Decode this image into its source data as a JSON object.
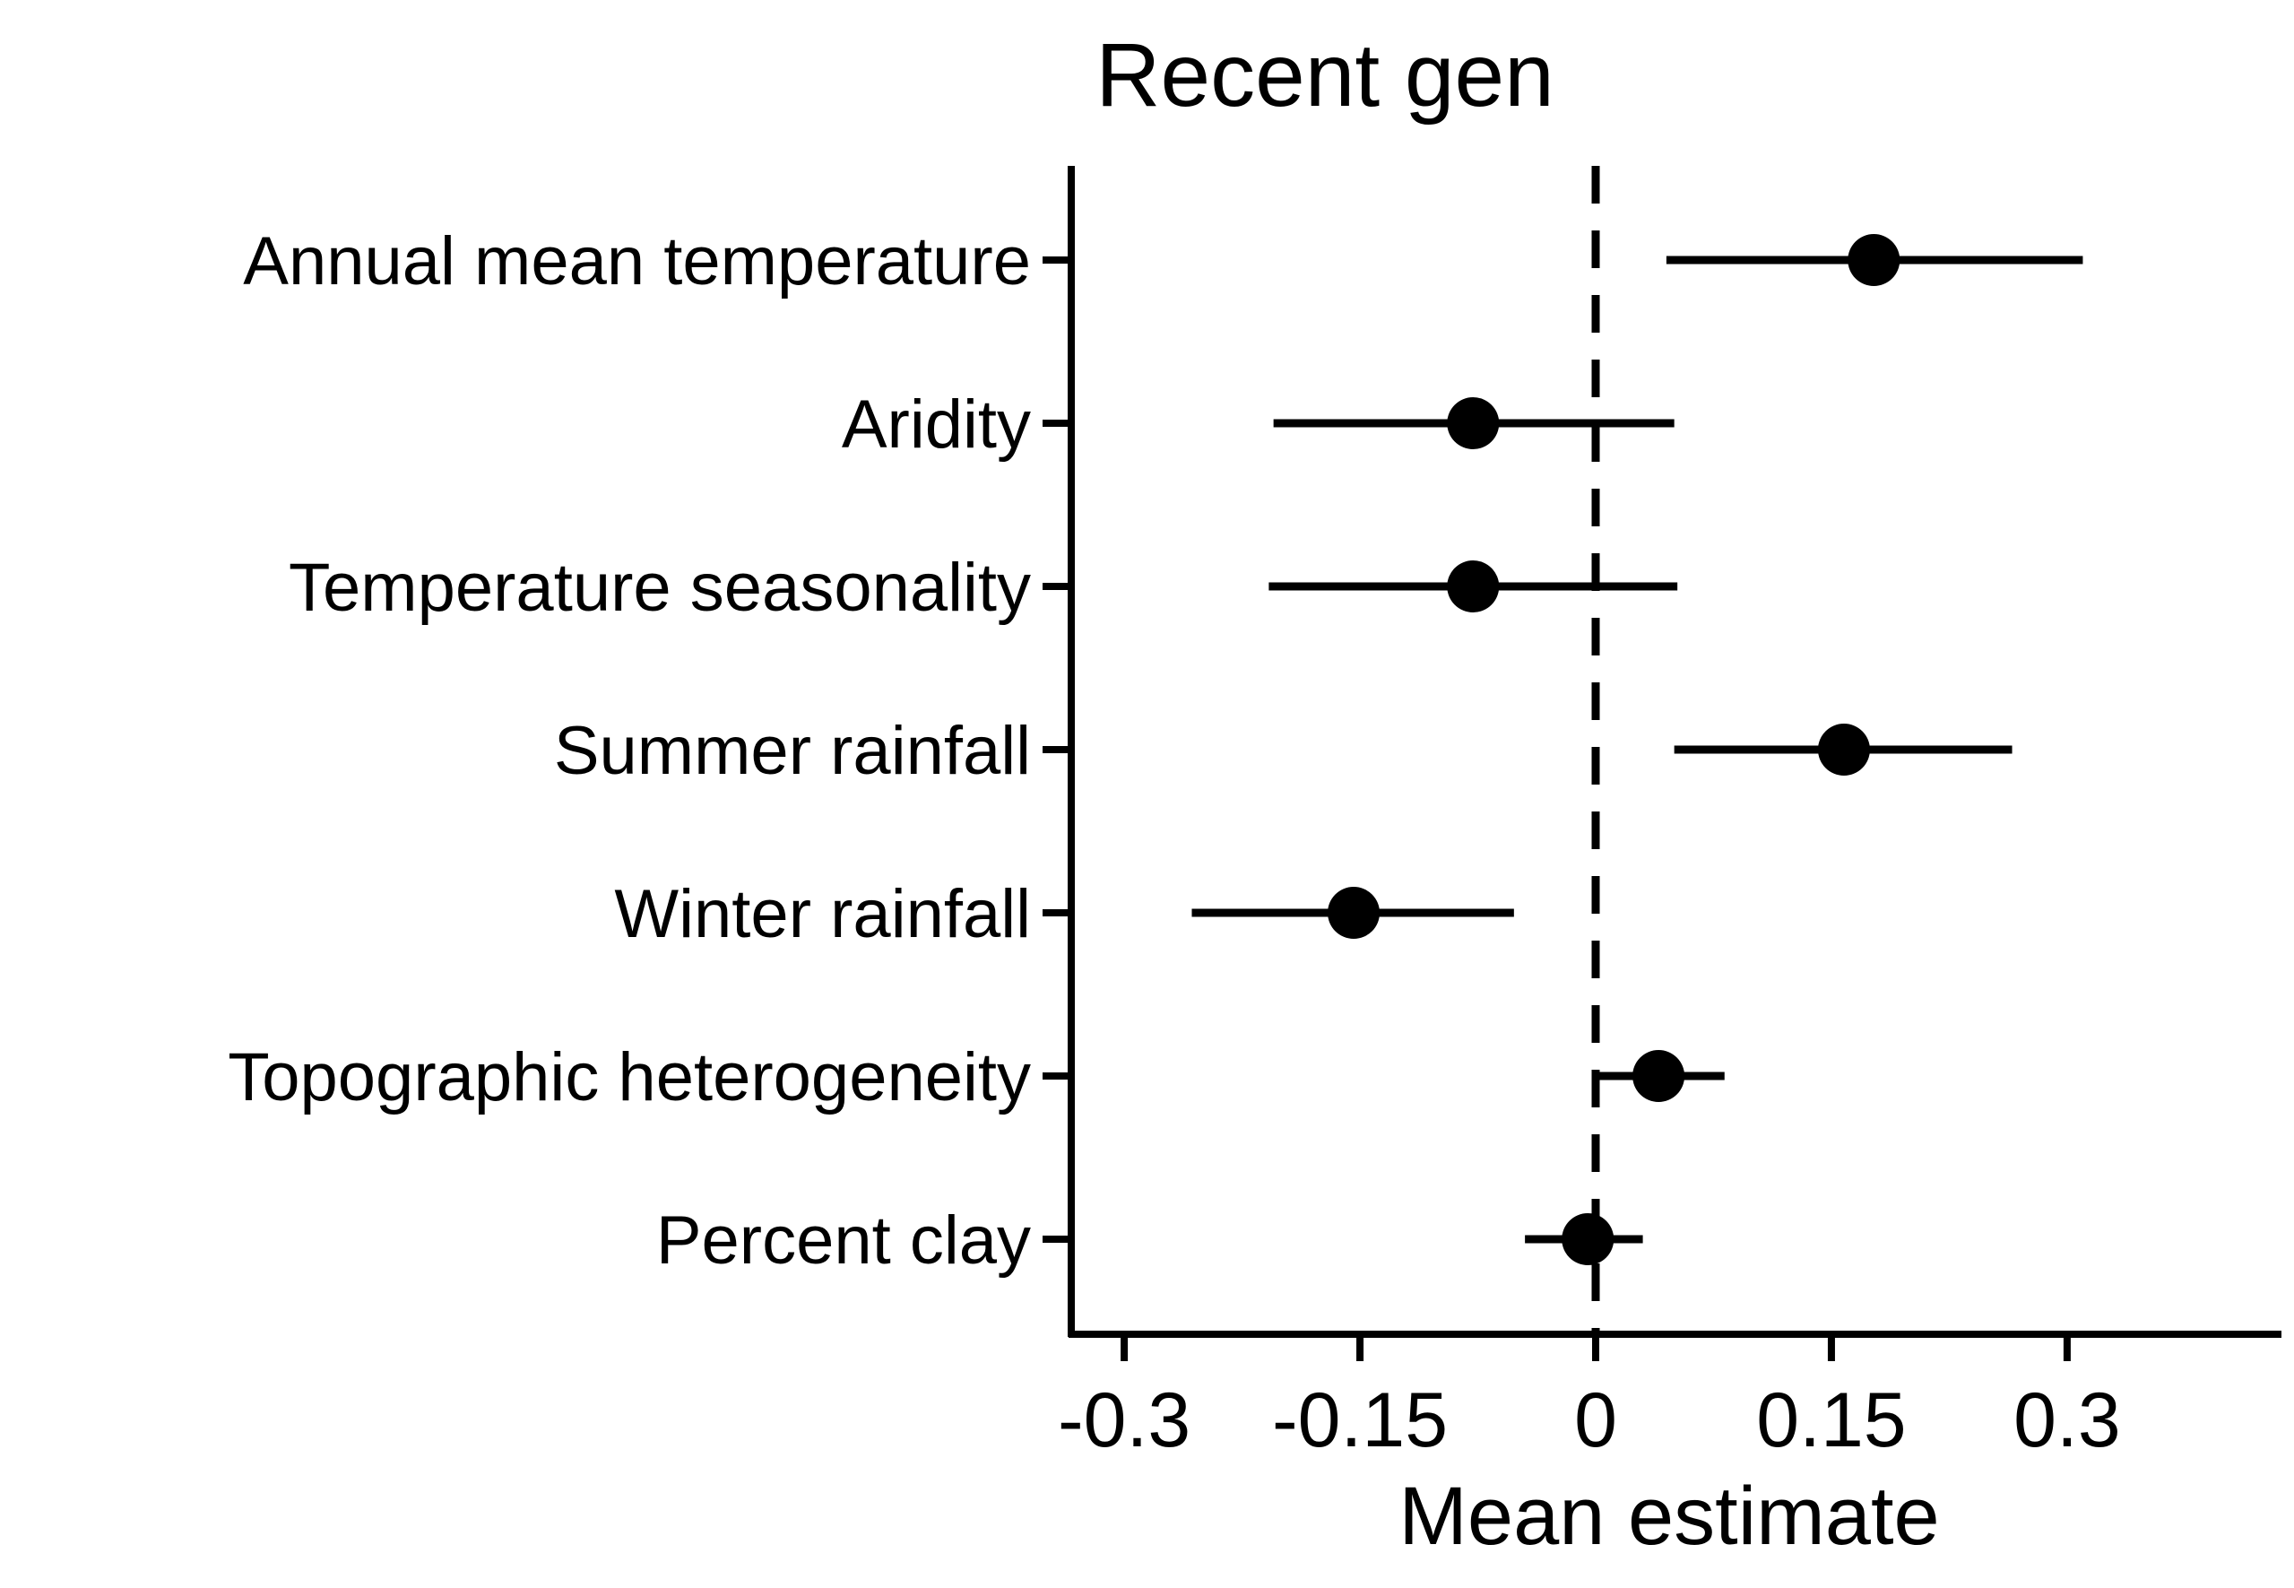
{
  "chart_data": {
    "type": "scatter",
    "subtype": "forest-plot",
    "title": "Recent gen",
    "xlabel": "Mean estimate",
    "ylabel": "",
    "xlim": [
      -0.335,
      0.43
    ],
    "x_ticks": [
      -0.3,
      -0.15,
      0,
      0.15,
      0.3
    ],
    "x_tick_labels": [
      "-0.3",
      "-0.15",
      "0",
      "0.15",
      "0.3"
    ],
    "reference_line": {
      "x": 0,
      "style": "dashed"
    },
    "grid": false,
    "legend": "none",
    "point_color": "#000000",
    "categories": [
      "Annual mean temperature",
      "Aridity",
      "Temperature seasonality",
      "Summer rainfall",
      "Winter rainfall",
      "Topographic heterogeneity",
      "Percent clay"
    ],
    "values": [
      0.177,
      -0.078,
      -0.078,
      0.158,
      -0.154,
      0.04,
      -0.005
    ],
    "lower": [
      0.045,
      -0.205,
      -0.208,
      0.05,
      -0.257,
      0.0,
      -0.045
    ],
    "upper": [
      0.31,
      0.05,
      0.052,
      0.265,
      -0.052,
      0.082,
      0.03
    ]
  }
}
